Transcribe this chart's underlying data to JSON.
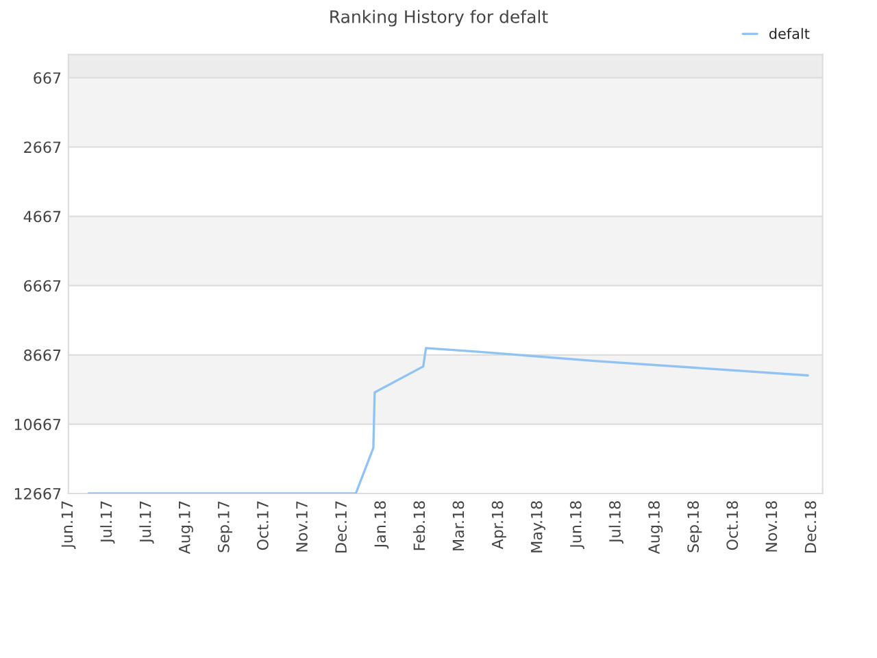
{
  "chart_data": {
    "type": "line",
    "title": "Ranking History for defalt",
    "x": [
      "2017-06-17",
      "2018-01-01",
      "2018-01-14",
      "2018-01-15",
      "2018-02-20",
      "2018-02-22",
      "2018-04-03",
      "2018-06-27",
      "2018-12-02"
    ],
    "series": [
      {
        "name": "defalt",
        "color": "#90c3f3",
        "values": [
          12667,
          12667,
          11350,
          9750,
          9000,
          8470,
          8580,
          8840,
          9260
        ]
      }
    ],
    "xlim": [
      "2017-06-02",
      "2018-12-13"
    ],
    "xticks": [
      {
        "value": "2017-06-02",
        "label": "Jun.17"
      },
      {
        "value": "2017-07-01",
        "label": "Jul.17"
      },
      {
        "value": "2017-07-30",
        "label": "Jul.17"
      },
      {
        "value": "2017-08-28",
        "label": "Aug.17"
      },
      {
        "value": "2017-09-26",
        "label": "Sep.17"
      },
      {
        "value": "2017-10-25",
        "label": "Oct.17"
      },
      {
        "value": "2017-11-23",
        "label": "Nov.17"
      },
      {
        "value": "2017-12-22",
        "label": "Dec.17"
      },
      {
        "value": "2018-01-20",
        "label": "Jan.18"
      },
      {
        "value": "2018-02-18",
        "label": "Feb.18"
      },
      {
        "value": "2018-03-19",
        "label": "Mar.18"
      },
      {
        "value": "2018-04-17",
        "label": "Apr.18"
      },
      {
        "value": "2018-05-16",
        "label": "May.18"
      },
      {
        "value": "2018-06-14",
        "label": "Jun.18"
      },
      {
        "value": "2018-07-13",
        "label": "Jul.18"
      },
      {
        "value": "2018-08-11",
        "label": "Aug.18"
      },
      {
        "value": "2018-09-09",
        "label": "Sep.18"
      },
      {
        "value": "2018-10-08",
        "label": "Oct.18"
      },
      {
        "value": "2018-11-06",
        "label": "Nov.18"
      },
      {
        "value": "2018-12-05",
        "label": "Dec.18"
      }
    ],
    "ylim": [
      12667,
      0
    ],
    "yticks": [
      667,
      2667,
      4667,
      6667,
      8667,
      10667,
      12667
    ],
    "bands": [
      {
        "axis": "y",
        "from": 0,
        "to": 667,
        "color": "#ececec"
      },
      {
        "axis": "y",
        "from": 667,
        "to": 2667,
        "color": "#f3f3f3"
      },
      {
        "axis": "y",
        "from": 4667,
        "to": 6667,
        "color": "#f3f3f3"
      },
      {
        "axis": "y",
        "from": 8667,
        "to": 10667,
        "color": "#f3f3f3"
      }
    ],
    "grid": "y",
    "legend": "top right",
    "marker": "none",
    "line_style": "solid"
  }
}
